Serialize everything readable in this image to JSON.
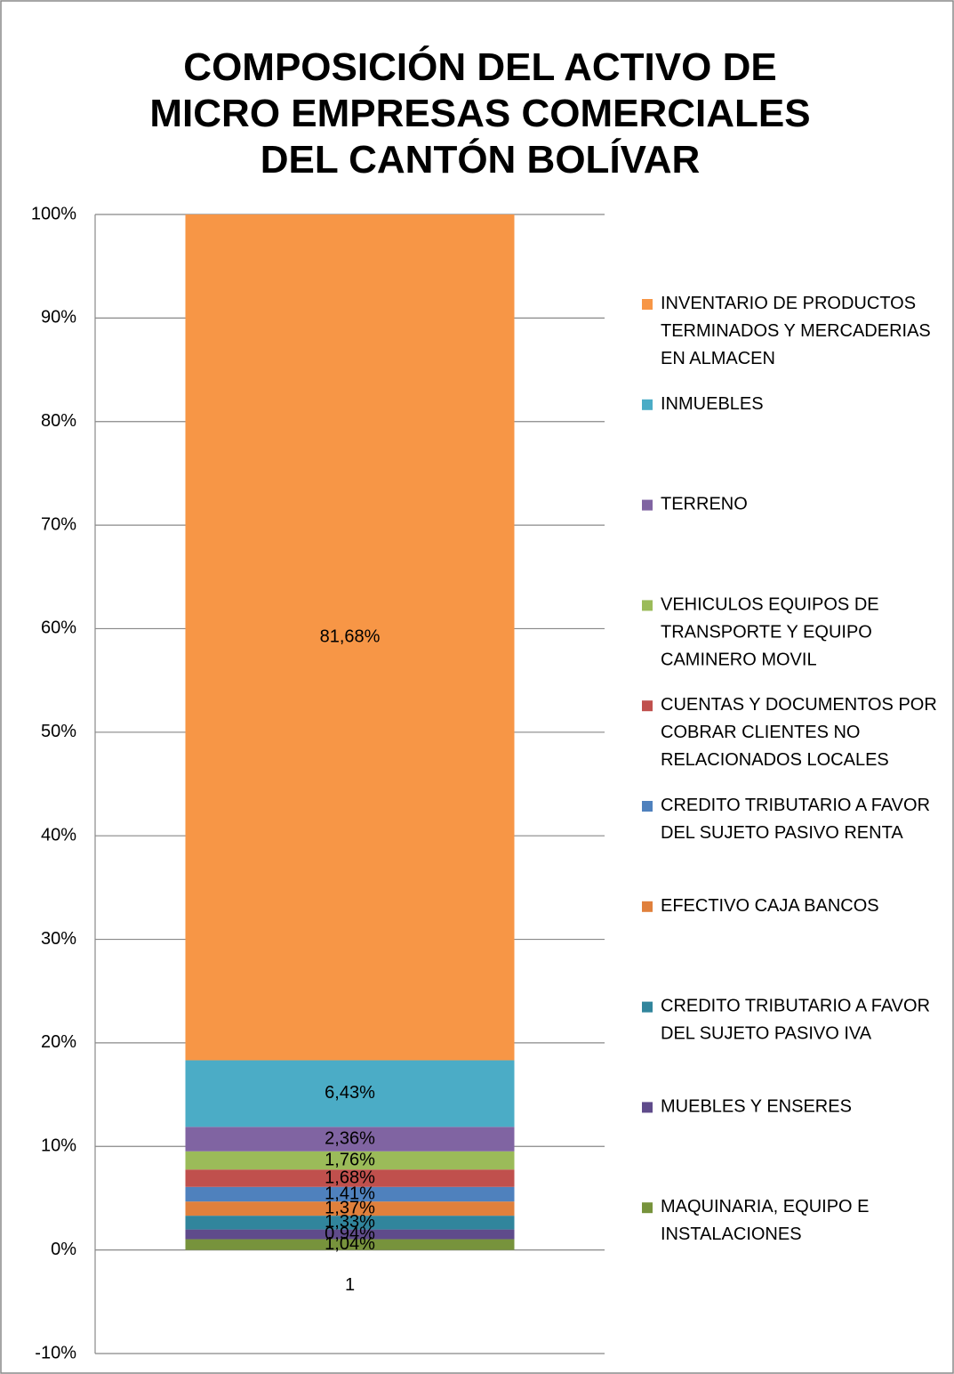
{
  "chart_data": {
    "type": "stacked_bar",
    "title": "COMPOSICIÓN DEL ACTIVO DE MICRO EMPRESAS COMERCIALES DEL CANTÓN BOLÍVAR",
    "categories": [
      "1"
    ],
    "ylim": [
      -10,
      100
    ],
    "yticks": [
      {
        "value": -10,
        "label": "-10%"
      },
      {
        "value": 0,
        "label": "0%"
      },
      {
        "value": 10,
        "label": "10%"
      },
      {
        "value": 20,
        "label": "20%"
      },
      {
        "value": 30,
        "label": "30%"
      },
      {
        "value": 40,
        "label": "40%"
      },
      {
        "value": 50,
        "label": "50%"
      },
      {
        "value": 60,
        "label": "60%"
      },
      {
        "value": 70,
        "label": "70%"
      },
      {
        "value": 80,
        "label": "80%"
      },
      {
        "value": 90,
        "label": "90%"
      },
      {
        "value": 100,
        "label": "100%"
      }
    ],
    "grid": true,
    "legend": "right",
    "series": [
      {
        "name": "MAQUINARIA, EQUIPO E INSTALACIONES",
        "color": "#77933c",
        "values": [
          1.04
        ],
        "value_labels": [
          "1,04%"
        ]
      },
      {
        "name": "MUEBLES Y ENSERES",
        "color": "#5f4b8b",
        "values": [
          0.94
        ],
        "value_labels": [
          "0,94%"
        ]
      },
      {
        "name": "CREDITO TRIBUTARIO A FAVOR DEL SUJETO PASIVO IVA",
        "color": "#31859c",
        "values": [
          1.33
        ],
        "value_labels": [
          "1,33%"
        ]
      },
      {
        "name": "EFECTIVO CAJA BANCOS",
        "color": "#e0803c",
        "values": [
          1.37
        ],
        "value_labels": [
          "1,37%"
        ]
      },
      {
        "name": "CREDITO TRIBUTARIO A FAVOR DEL SUJETO PASIVO RENTA",
        "color": "#4f81bd",
        "values": [
          1.41
        ],
        "value_labels": [
          "1,41%"
        ]
      },
      {
        "name": "CUENTAS Y DOCUMENTOS POR COBRAR CLIENTES NO RELACIONADOS LOCALES",
        "color": "#c0504d",
        "values": [
          1.68
        ],
        "value_labels": [
          "1,68%"
        ]
      },
      {
        "name": "VEHICULOS EQUIPOS DE TRANSPORTE Y EQUIPO CAMINERO MOVIL",
        "color": "#9bbb59",
        "values": [
          1.76
        ],
        "value_labels": [
          "1,76%"
        ]
      },
      {
        "name": "TERRENO",
        "color": "#8064a2",
        "values": [
          2.36
        ],
        "value_labels": [
          "2,36%"
        ]
      },
      {
        "name": "INMUEBLES",
        "color": "#4bacc6",
        "values": [
          6.43
        ],
        "value_labels": [
          "6,43%"
        ]
      },
      {
        "name": "INVENTARIO DE PRODUCTOS TERMINADOS Y MERCADERIAS EN ALMACEN",
        "color": "#f79646",
        "values": [
          81.68
        ],
        "value_labels": [
          "81,68%"
        ]
      }
    ]
  }
}
